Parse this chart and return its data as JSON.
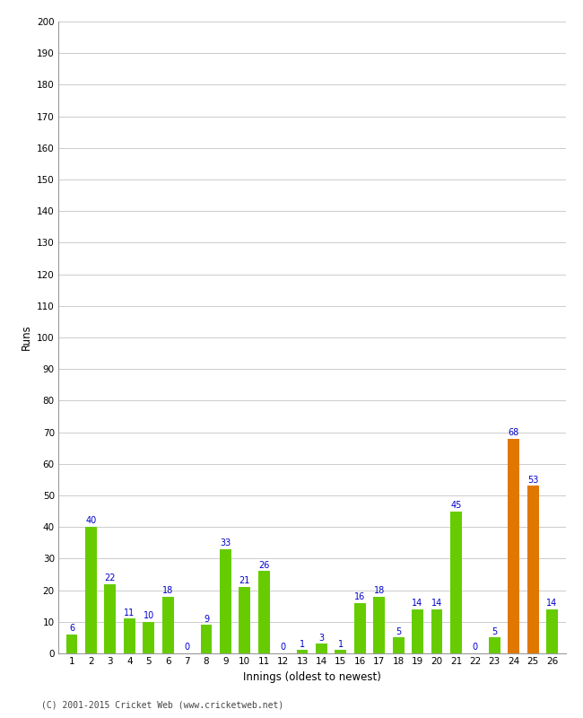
{
  "innings": [
    1,
    2,
    3,
    4,
    5,
    6,
    7,
    8,
    9,
    10,
    11,
    12,
    13,
    14,
    15,
    16,
    17,
    18,
    19,
    20,
    21,
    22,
    23,
    24,
    25,
    26
  ],
  "values": [
    6,
    40,
    22,
    11,
    10,
    18,
    0,
    9,
    33,
    21,
    26,
    0,
    1,
    3,
    1,
    16,
    18,
    5,
    14,
    14,
    45,
    0,
    5,
    68,
    53,
    14
  ],
  "colors": [
    "#66cc00",
    "#66cc00",
    "#66cc00",
    "#66cc00",
    "#66cc00",
    "#66cc00",
    "#66cc00",
    "#66cc00",
    "#66cc00",
    "#66cc00",
    "#66cc00",
    "#66cc00",
    "#66cc00",
    "#66cc00",
    "#66cc00",
    "#66cc00",
    "#66cc00",
    "#66cc00",
    "#66cc00",
    "#66cc00",
    "#66cc00",
    "#66cc00",
    "#66cc00",
    "#e07800",
    "#e07800",
    "#66cc00"
  ],
  "xlabel": "Innings (oldest to newest)",
  "ylabel": "Runs",
  "ylim": [
    0,
    200
  ],
  "yticks": [
    0,
    10,
    20,
    30,
    40,
    50,
    60,
    70,
    80,
    90,
    100,
    110,
    120,
    130,
    140,
    150,
    160,
    170,
    180,
    190,
    200
  ],
  "label_color": "#0000cc",
  "bg_color": "#ffffff",
  "grid_color": "#cccccc",
  "footer": "(C) 2001-2015 Cricket Web (www.cricketweb.net)"
}
